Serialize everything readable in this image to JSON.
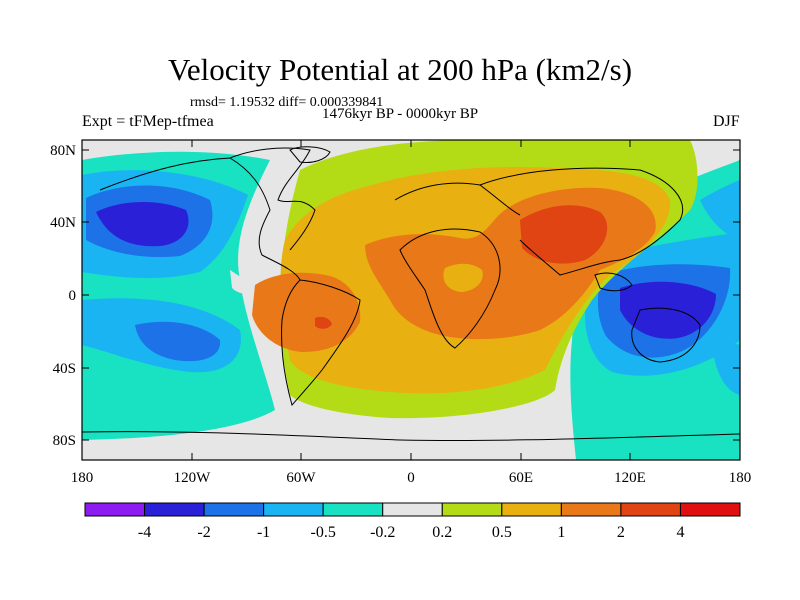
{
  "header": {
    "title": "Velocity Potential at 200 hPa (km2/s)",
    "stats": "rmsd= 1.19532 diff= 0.000339841",
    "period": "1476kyr BP - 0000kyr BP",
    "experiment": "Expt = tFMep-tfmea",
    "season": "DJF"
  },
  "axes": {
    "lat_labels": [
      "80N",
      "40N",
      "0",
      "40S",
      "80S"
    ],
    "lon_labels": [
      "180",
      "120W",
      "60W",
      "0",
      "60E",
      "120E",
      "180"
    ]
  },
  "colorbar": {
    "labels": [
      "-4",
      "-2",
      "-1",
      "-0.5",
      "-0.2",
      "0.2",
      "0.5",
      "1",
      "2",
      "4"
    ],
    "colors": [
      "#8c1cf0",
      "#2a20d8",
      "#1c72e6",
      "#1ab4f2",
      "#18e2c2",
      "#e6e6e6",
      "#b4dc16",
      "#e8b010",
      "#e87818",
      "#e04412",
      "#e01010"
    ]
  }
}
